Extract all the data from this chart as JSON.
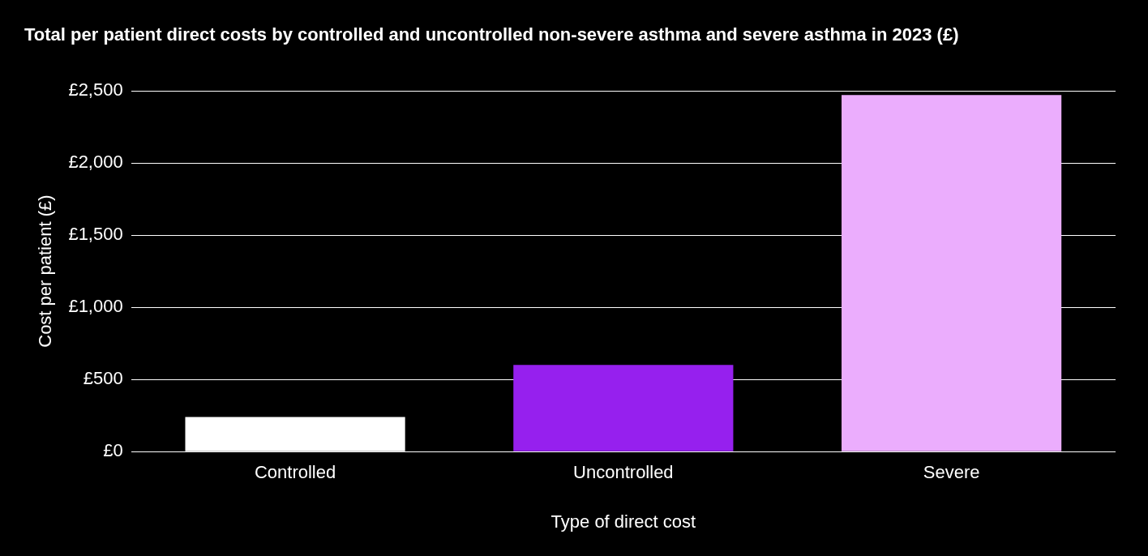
{
  "chart_data": {
    "type": "bar",
    "title": "Total per patient direct costs by controlled and uncontrolled non-severe asthma and severe asthma in 2023 (£)",
    "xlabel": "Type of direct cost",
    "ylabel": "Cost per patient (£)",
    "categories": [
      "Controlled",
      "Uncontrolled",
      "Severe"
    ],
    "values": [
      240,
      600,
      2470
    ],
    "colors": [
      "#ffffff",
      "#9620ee",
      "#ebadfd"
    ],
    "ylim": [
      0,
      2500
    ],
    "yticks": [
      {
        "value": 0,
        "label": "£0"
      },
      {
        "value": 500,
        "label": "£500"
      },
      {
        "value": 1000,
        "label": "£1,000"
      },
      {
        "value": 1500,
        "label": "£1,500"
      },
      {
        "value": 2000,
        "label": "£2,000"
      },
      {
        "value": 2500,
        "label": "£2,500"
      }
    ],
    "grid": "y",
    "legend": false
  }
}
